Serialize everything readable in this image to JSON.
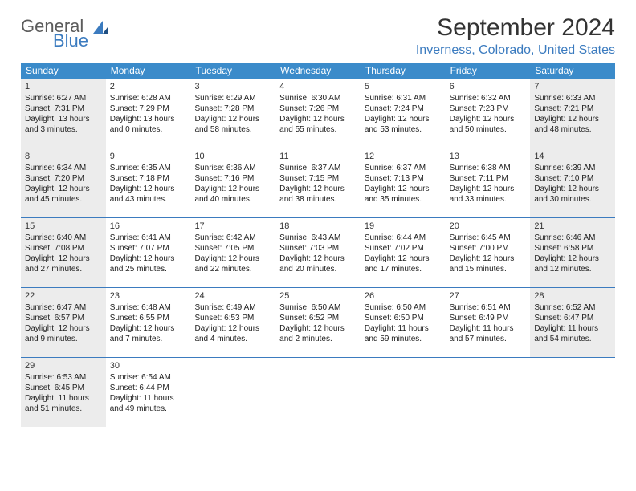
{
  "logo": {
    "top": "General",
    "bottom": "Blue"
  },
  "title": "September 2024",
  "location": "Inverness, Colorado, United States",
  "colors": {
    "header_bg": "#3b8bca",
    "header_text": "#ffffff",
    "accent": "#3b7bbf",
    "shaded_bg": "#ececec",
    "text": "#222222"
  },
  "daysOfWeek": [
    "Sunday",
    "Monday",
    "Tuesday",
    "Wednesday",
    "Thursday",
    "Friday",
    "Saturday"
  ],
  "weeks": [
    [
      {
        "day": "1",
        "shaded": true,
        "sunrise": "Sunrise: 6:27 AM",
        "sunset": "Sunset: 7:31 PM",
        "daylight": "Daylight: 13 hours and 3 minutes."
      },
      {
        "day": "2",
        "shaded": false,
        "sunrise": "Sunrise: 6:28 AM",
        "sunset": "Sunset: 7:29 PM",
        "daylight": "Daylight: 13 hours and 0 minutes."
      },
      {
        "day": "3",
        "shaded": false,
        "sunrise": "Sunrise: 6:29 AM",
        "sunset": "Sunset: 7:28 PM",
        "daylight": "Daylight: 12 hours and 58 minutes."
      },
      {
        "day": "4",
        "shaded": false,
        "sunrise": "Sunrise: 6:30 AM",
        "sunset": "Sunset: 7:26 PM",
        "daylight": "Daylight: 12 hours and 55 minutes."
      },
      {
        "day": "5",
        "shaded": false,
        "sunrise": "Sunrise: 6:31 AM",
        "sunset": "Sunset: 7:24 PM",
        "daylight": "Daylight: 12 hours and 53 minutes."
      },
      {
        "day": "6",
        "shaded": false,
        "sunrise": "Sunrise: 6:32 AM",
        "sunset": "Sunset: 7:23 PM",
        "daylight": "Daylight: 12 hours and 50 minutes."
      },
      {
        "day": "7",
        "shaded": true,
        "sunrise": "Sunrise: 6:33 AM",
        "sunset": "Sunset: 7:21 PM",
        "daylight": "Daylight: 12 hours and 48 minutes."
      }
    ],
    [
      {
        "day": "8",
        "shaded": true,
        "sunrise": "Sunrise: 6:34 AM",
        "sunset": "Sunset: 7:20 PM",
        "daylight": "Daylight: 12 hours and 45 minutes."
      },
      {
        "day": "9",
        "shaded": false,
        "sunrise": "Sunrise: 6:35 AM",
        "sunset": "Sunset: 7:18 PM",
        "daylight": "Daylight: 12 hours and 43 minutes."
      },
      {
        "day": "10",
        "shaded": false,
        "sunrise": "Sunrise: 6:36 AM",
        "sunset": "Sunset: 7:16 PM",
        "daylight": "Daylight: 12 hours and 40 minutes."
      },
      {
        "day": "11",
        "shaded": false,
        "sunrise": "Sunrise: 6:37 AM",
        "sunset": "Sunset: 7:15 PM",
        "daylight": "Daylight: 12 hours and 38 minutes."
      },
      {
        "day": "12",
        "shaded": false,
        "sunrise": "Sunrise: 6:37 AM",
        "sunset": "Sunset: 7:13 PM",
        "daylight": "Daylight: 12 hours and 35 minutes."
      },
      {
        "day": "13",
        "shaded": false,
        "sunrise": "Sunrise: 6:38 AM",
        "sunset": "Sunset: 7:11 PM",
        "daylight": "Daylight: 12 hours and 33 minutes."
      },
      {
        "day": "14",
        "shaded": true,
        "sunrise": "Sunrise: 6:39 AM",
        "sunset": "Sunset: 7:10 PM",
        "daylight": "Daylight: 12 hours and 30 minutes."
      }
    ],
    [
      {
        "day": "15",
        "shaded": true,
        "sunrise": "Sunrise: 6:40 AM",
        "sunset": "Sunset: 7:08 PM",
        "daylight": "Daylight: 12 hours and 27 minutes."
      },
      {
        "day": "16",
        "shaded": false,
        "sunrise": "Sunrise: 6:41 AM",
        "sunset": "Sunset: 7:07 PM",
        "daylight": "Daylight: 12 hours and 25 minutes."
      },
      {
        "day": "17",
        "shaded": false,
        "sunrise": "Sunrise: 6:42 AM",
        "sunset": "Sunset: 7:05 PM",
        "daylight": "Daylight: 12 hours and 22 minutes."
      },
      {
        "day": "18",
        "shaded": false,
        "sunrise": "Sunrise: 6:43 AM",
        "sunset": "Sunset: 7:03 PM",
        "daylight": "Daylight: 12 hours and 20 minutes."
      },
      {
        "day": "19",
        "shaded": false,
        "sunrise": "Sunrise: 6:44 AM",
        "sunset": "Sunset: 7:02 PM",
        "daylight": "Daylight: 12 hours and 17 minutes."
      },
      {
        "day": "20",
        "shaded": false,
        "sunrise": "Sunrise: 6:45 AM",
        "sunset": "Sunset: 7:00 PM",
        "daylight": "Daylight: 12 hours and 15 minutes."
      },
      {
        "day": "21",
        "shaded": true,
        "sunrise": "Sunrise: 6:46 AM",
        "sunset": "Sunset: 6:58 PM",
        "daylight": "Daylight: 12 hours and 12 minutes."
      }
    ],
    [
      {
        "day": "22",
        "shaded": true,
        "sunrise": "Sunrise: 6:47 AM",
        "sunset": "Sunset: 6:57 PM",
        "daylight": "Daylight: 12 hours and 9 minutes."
      },
      {
        "day": "23",
        "shaded": false,
        "sunrise": "Sunrise: 6:48 AM",
        "sunset": "Sunset: 6:55 PM",
        "daylight": "Daylight: 12 hours and 7 minutes."
      },
      {
        "day": "24",
        "shaded": false,
        "sunrise": "Sunrise: 6:49 AM",
        "sunset": "Sunset: 6:53 PM",
        "daylight": "Daylight: 12 hours and 4 minutes."
      },
      {
        "day": "25",
        "shaded": false,
        "sunrise": "Sunrise: 6:50 AM",
        "sunset": "Sunset: 6:52 PM",
        "daylight": "Daylight: 12 hours and 2 minutes."
      },
      {
        "day": "26",
        "shaded": false,
        "sunrise": "Sunrise: 6:50 AM",
        "sunset": "Sunset: 6:50 PM",
        "daylight": "Daylight: 11 hours and 59 minutes."
      },
      {
        "day": "27",
        "shaded": false,
        "sunrise": "Sunrise: 6:51 AM",
        "sunset": "Sunset: 6:49 PM",
        "daylight": "Daylight: 11 hours and 57 minutes."
      },
      {
        "day": "28",
        "shaded": true,
        "sunrise": "Sunrise: 6:52 AM",
        "sunset": "Sunset: 6:47 PM",
        "daylight": "Daylight: 11 hours and 54 minutes."
      }
    ],
    [
      {
        "day": "29",
        "shaded": true,
        "sunrise": "Sunrise: 6:53 AM",
        "sunset": "Sunset: 6:45 PM",
        "daylight": "Daylight: 11 hours and 51 minutes."
      },
      {
        "day": "30",
        "shaded": false,
        "sunrise": "Sunrise: 6:54 AM",
        "sunset": "Sunset: 6:44 PM",
        "daylight": "Daylight: 11 hours and 49 minutes."
      },
      null,
      null,
      null,
      null,
      null
    ]
  ]
}
